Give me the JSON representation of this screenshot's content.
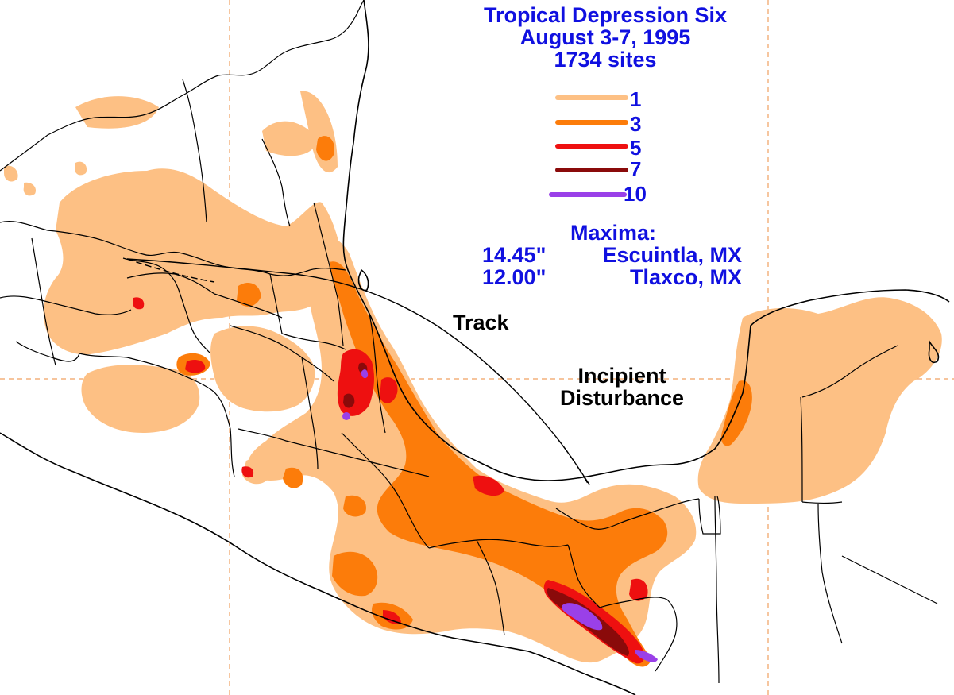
{
  "title": {
    "line1": "Tropical Depression Six",
    "line2": "August 3-7, 1995",
    "line3": "1734 sites"
  },
  "legend": [
    {
      "label": "1",
      "color": "#fdc084"
    },
    {
      "label": "3",
      "color": "#fc7c0a"
    },
    {
      "label": "5",
      "color": "#ee1010"
    },
    {
      "label": "7",
      "color": "#8a0a0a"
    },
    {
      "label": "10",
      "color": "#9a40e8"
    }
  ],
  "maxima": {
    "heading": "Maxima:",
    "entries": [
      {
        "value": "14.45\"",
        "location": "Escuintla, MX"
      },
      {
        "value": "12.00\"",
        "location": "Tlaxco, MX"
      }
    ]
  },
  "annotations": {
    "track": "Track",
    "incipient_line1": "Incipient",
    "incipient_line2": "Disturbance"
  }
}
